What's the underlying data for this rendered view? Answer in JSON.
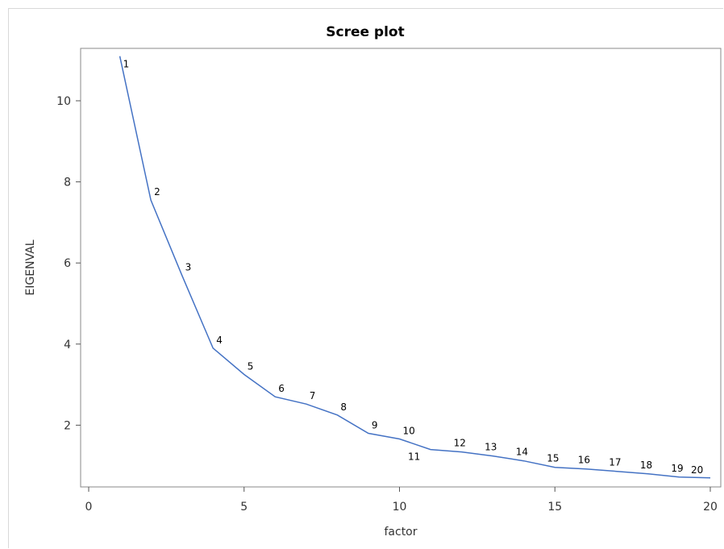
{
  "chart_data": {
    "type": "line",
    "title": "Scree plot",
    "xlabel": "factor",
    "ylabel": "EIGENVAL",
    "xlim": [
      0,
      20
    ],
    "ylim": [
      0.5,
      11.1
    ],
    "xticks": [
      0,
      5,
      10,
      15,
      20
    ],
    "yticks": [
      2,
      4,
      6,
      8,
      10
    ],
    "grid": false,
    "legend": "none",
    "series_color": "#4472c4",
    "series": [
      {
        "x": [
          1,
          2,
          3,
          4,
          5,
          6,
          7,
          8,
          9,
          10,
          11,
          12,
          13,
          14,
          15,
          16,
          17,
          18,
          19,
          20
        ],
        "y": [
          11.1,
          7.55,
          5.7,
          3.9,
          3.25,
          2.7,
          2.52,
          2.25,
          1.8,
          1.66,
          1.4,
          1.34,
          1.24,
          1.12,
          0.96,
          0.92,
          0.86,
          0.8,
          0.72,
          0.7
        ],
        "labels": [
          "1",
          "2",
          "3",
          "4",
          "5",
          "6",
          "7",
          "8",
          "9",
          "10",
          "11",
          "12",
          "13",
          "14",
          "15",
          "16",
          "17",
          "18",
          "19",
          "20"
        ]
      }
    ]
  }
}
